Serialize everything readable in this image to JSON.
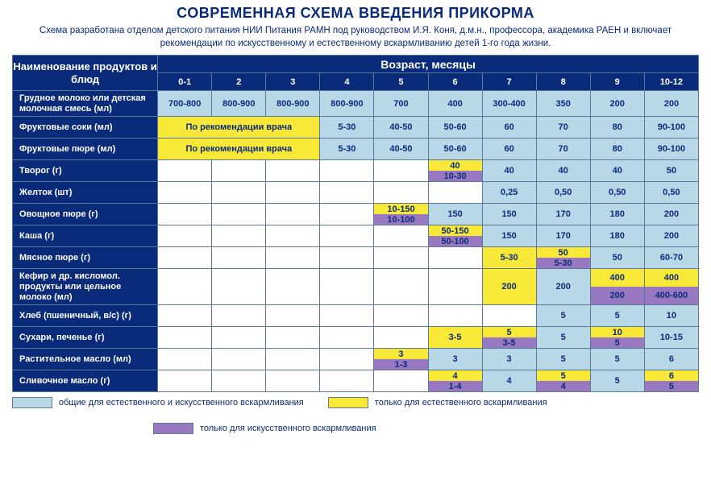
{
  "title": "СОВРЕМЕННАЯ СХЕМА ВВЕДЕНИЯ ПРИКОРМА",
  "subtitle": "Схема разработана отделом детского питания НИИ Питания РАМН под руководством И.Я. Коня, д.м.н., профессора, академика РАЕН и включает рекомендации по искусственному и естественному вскармливанию детей 1-го года жизни.",
  "corner": "Наименование продуктов и блюд",
  "age_header": "Возраст, месяцы",
  "ages": [
    "0-1",
    "2",
    "3",
    "4",
    "5",
    "6",
    "7",
    "8",
    "9",
    "10-12"
  ],
  "rec_label": "По рекомендации врача",
  "rows": {
    "r0": {
      "label": "Грудное молоко или детская молочная смесь (мл)",
      "cells": [
        {
          "t": "b",
          "v": "700-800"
        },
        {
          "t": "b",
          "v": "800-900"
        },
        {
          "t": "b",
          "v": "800-900"
        },
        {
          "t": "b",
          "v": "800-900"
        },
        {
          "t": "b",
          "v": "700"
        },
        {
          "t": "b",
          "v": "400"
        },
        {
          "t": "b",
          "v": "300-400"
        },
        {
          "t": "b",
          "v": "350"
        },
        {
          "t": "b",
          "v": "200"
        },
        {
          "t": "b",
          "v": "200"
        }
      ]
    },
    "r1": {
      "label": "Фруктовые соки (мл)",
      "cells": [
        {
          "t": "rec",
          "span": 3
        },
        {
          "t": "b",
          "v": "5-30"
        },
        {
          "t": "b",
          "v": "40-50"
        },
        {
          "t": "b",
          "v": "50-60"
        },
        {
          "t": "b",
          "v": "60"
        },
        {
          "t": "b",
          "v": "70"
        },
        {
          "t": "b",
          "v": "80"
        },
        {
          "t": "b",
          "v": "90-100"
        }
      ]
    },
    "r2": {
      "label": "Фруктовые пюре (мл)",
      "cells": [
        {
          "t": "rec",
          "span": 3
        },
        {
          "t": "b",
          "v": "5-30"
        },
        {
          "t": "b",
          "v": "40-50"
        },
        {
          "t": "b",
          "v": "50-60"
        },
        {
          "t": "b",
          "v": "60"
        },
        {
          "t": "b",
          "v": "70"
        },
        {
          "t": "b",
          "v": "80"
        },
        {
          "t": "b",
          "v": "90-100"
        }
      ]
    },
    "r3": {
      "label": "Творог (г)",
      "cells": [
        {
          "t": "w"
        },
        {
          "t": "w"
        },
        {
          "t": "w"
        },
        {
          "t": "w"
        },
        {
          "t": "w"
        },
        {
          "t": "yp",
          "y": "40",
          "p": "10-30"
        },
        {
          "t": "b",
          "v": "40"
        },
        {
          "t": "b",
          "v": "40"
        },
        {
          "t": "b",
          "v": "40"
        },
        {
          "t": "b",
          "v": "50"
        }
      ]
    },
    "r4": {
      "label": "Желток (шт)",
      "cells": [
        {
          "t": "w"
        },
        {
          "t": "w"
        },
        {
          "t": "w"
        },
        {
          "t": "w"
        },
        {
          "t": "w"
        },
        {
          "t": "w"
        },
        {
          "t": "b",
          "v": "0,25"
        },
        {
          "t": "b",
          "v": "0,50"
        },
        {
          "t": "b",
          "v": "0,50"
        },
        {
          "t": "b",
          "v": "0,50"
        }
      ]
    },
    "r5": {
      "label": "Овощное пюре (г)",
      "cells": [
        {
          "t": "w"
        },
        {
          "t": "w"
        },
        {
          "t": "w"
        },
        {
          "t": "w"
        },
        {
          "t": "yp",
          "y": "10-150",
          "p": "10-100"
        },
        {
          "t": "b",
          "v": "150"
        },
        {
          "t": "b",
          "v": "150"
        },
        {
          "t": "b",
          "v": "170"
        },
        {
          "t": "b",
          "v": "180"
        },
        {
          "t": "b",
          "v": "200"
        }
      ]
    },
    "r6": {
      "label": "Каша (г)",
      "cells": [
        {
          "t": "w"
        },
        {
          "t": "w"
        },
        {
          "t": "w"
        },
        {
          "t": "w"
        },
        {
          "t": "w"
        },
        {
          "t": "yp",
          "y": "50-150",
          "p": "50-100"
        },
        {
          "t": "b",
          "v": "150"
        },
        {
          "t": "b",
          "v": "170"
        },
        {
          "t": "b",
          "v": "180"
        },
        {
          "t": "b",
          "v": "200"
        }
      ]
    },
    "r7": {
      "label": "Мясное пюре (г)",
      "cells": [
        {
          "t": "w"
        },
        {
          "t": "w"
        },
        {
          "t": "w"
        },
        {
          "t": "w"
        },
        {
          "t": "w"
        },
        {
          "t": "w"
        },
        {
          "t": "y",
          "v": "5-30"
        },
        {
          "t": "yp",
          "y": "50",
          "p": "5-30"
        },
        {
          "t": "b",
          "v": "50"
        },
        {
          "t": "b",
          "v": "60-70"
        }
      ]
    },
    "r8": {
      "label": "Кефир и др. кисломол. продукты или цельное молоко (мл)",
      "cells": [
        {
          "t": "w"
        },
        {
          "t": "w"
        },
        {
          "t": "w"
        },
        {
          "t": "w"
        },
        {
          "t": "w"
        },
        {
          "t": "w"
        },
        {
          "t": "y",
          "v": "200"
        },
        {
          "t": "b",
          "v": "200"
        },
        {
          "t": "yp",
          "y": "400",
          "p": "200"
        },
        {
          "t": "yp",
          "y": "400",
          "p": "400-600"
        }
      ]
    },
    "r9": {
      "label": "Хлеб (пшеничный, в/с) (г)",
      "cells": [
        {
          "t": "w"
        },
        {
          "t": "w"
        },
        {
          "t": "w"
        },
        {
          "t": "w"
        },
        {
          "t": "w"
        },
        {
          "t": "w"
        },
        {
          "t": "w"
        },
        {
          "t": "b",
          "v": "5"
        },
        {
          "t": "b",
          "v": "5"
        },
        {
          "t": "b",
          "v": "10"
        }
      ]
    },
    "r10": {
      "label": "Сухари,  печенье (г)",
      "cells": [
        {
          "t": "w"
        },
        {
          "t": "w"
        },
        {
          "t": "w"
        },
        {
          "t": "w"
        },
        {
          "t": "w"
        },
        {
          "t": "y",
          "v": "3-5"
        },
        {
          "t": "yp",
          "y": "5",
          "p": "3-5"
        },
        {
          "t": "b",
          "v": "5"
        },
        {
          "t": "yp",
          "y": "10",
          "p": "5"
        },
        {
          "t": "b",
          "v": "10-15"
        }
      ]
    },
    "r11": {
      "label": "Растительное масло (мл)",
      "cells": [
        {
          "t": "w"
        },
        {
          "t": "w"
        },
        {
          "t": "w"
        },
        {
          "t": "w"
        },
        {
          "t": "yp",
          "y": "3",
          "p": "1-3"
        },
        {
          "t": "b",
          "v": "3"
        },
        {
          "t": "b",
          "v": "3"
        },
        {
          "t": "b",
          "v": "5"
        },
        {
          "t": "b",
          "v": "5"
        },
        {
          "t": "b",
          "v": "6"
        }
      ]
    },
    "r12": {
      "label": "Сливочное масло (г)",
      "cells": [
        {
          "t": "w"
        },
        {
          "t": "w"
        },
        {
          "t": "w"
        },
        {
          "t": "w"
        },
        {
          "t": "w"
        },
        {
          "t": "yp",
          "y": "4",
          "p": "1-4"
        },
        {
          "t": "b",
          "v": "4"
        },
        {
          "t": "yp",
          "y": "5",
          "p": "4"
        },
        {
          "t": "b",
          "v": "5"
        },
        {
          "t": "yp",
          "y": "6",
          "p": "5"
        }
      ]
    }
  },
  "legend": {
    "blue": {
      "color": "#b8d8e8",
      "text": "общие для естественного и искусственного вскармливания"
    },
    "yellow": {
      "color": "#f8e838",
      "text": "только для естественного вскармливания"
    },
    "purple": {
      "color": "#9878c0",
      "text": "только для искусственного вскармливания"
    }
  },
  "colors": {
    "header_bg": "#0a2a7a",
    "blue": "#b8d8e8",
    "yellow": "#f8e838",
    "purple": "#9878c0",
    "border": "#5a7a9a"
  }
}
